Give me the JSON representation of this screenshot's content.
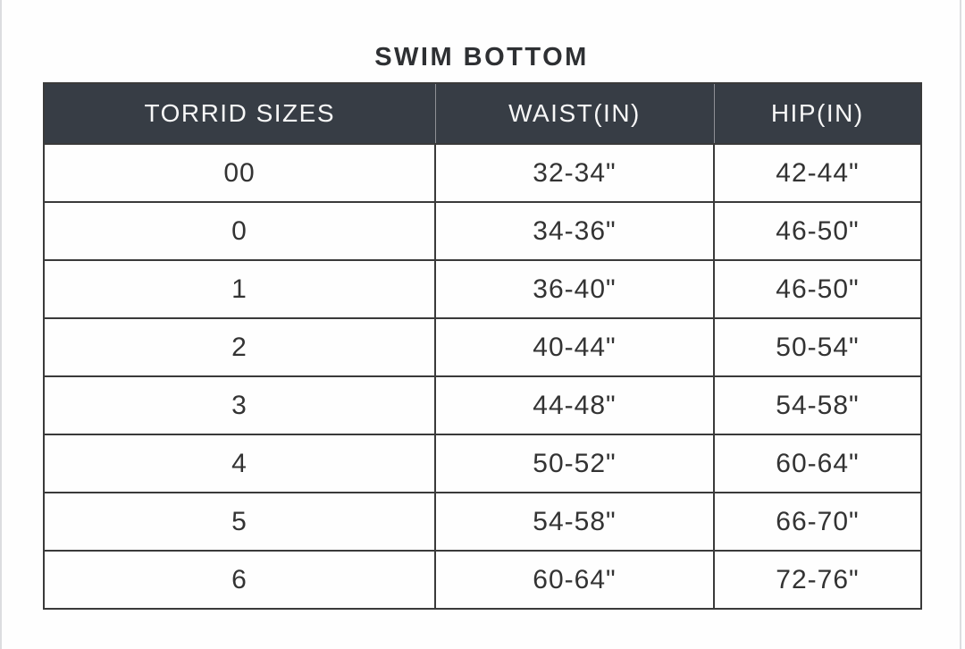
{
  "chart_data": {
    "type": "table",
    "title": "SWIM BOTTOM",
    "columns": [
      "TORRID SIZES",
      "WAIST(IN)",
      "HIP(IN)"
    ],
    "rows": [
      [
        "00",
        "32-34\"",
        "42-44\""
      ],
      [
        "0",
        "34-36\"",
        "46-50\""
      ],
      [
        "1",
        "36-40\"",
        "46-50\""
      ],
      [
        "2",
        "40-44\"",
        "50-54\""
      ],
      [
        "3",
        "44-48\"",
        "54-58\""
      ],
      [
        "4",
        "50-52\"",
        "60-64\""
      ],
      [
        "5",
        "54-58\"",
        "66-70\""
      ],
      [
        "6",
        "60-64\"",
        "72-76\""
      ]
    ],
    "layout": {
      "legend": "none",
      "grid": "full-borders",
      "header_position": "top"
    }
  },
  "colors": {
    "header_bg": "#373d45",
    "header_text": "#f7f7f7",
    "body_text": "#333333",
    "border": "#3a3a3a",
    "header_divider": "#8e9095",
    "page_bg": "#fefefe",
    "edge_line": "#dcdde0"
  }
}
